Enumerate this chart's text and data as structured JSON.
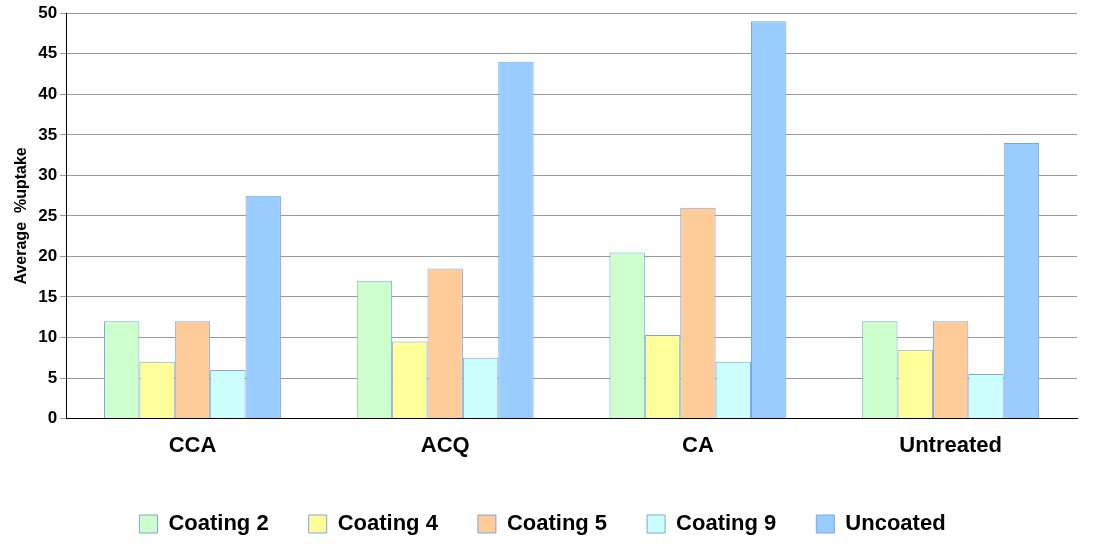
{
  "chart_data": {
    "type": "bar",
    "ylabel": "Average  %uptake",
    "categories": [
      "CCA",
      "ACQ",
      "CA",
      "Untreated"
    ],
    "series": [
      {
        "name": "Coating 2",
        "color": "#ccffcc",
        "values": [
          12,
          17,
          20.5,
          12
        ]
      },
      {
        "name": "Coating 4",
        "color": "#ffff99",
        "values": [
          7,
          9.5,
          10.3,
          8.5
        ]
      },
      {
        "name": "Coating 5",
        "color": "#ffcc99",
        "values": [
          12,
          18.5,
          26,
          12
        ]
      },
      {
        "name": "Coating 9",
        "color": "#ccffff",
        "values": [
          6,
          7.5,
          7,
          5.5
        ]
      },
      {
        "name": "Uncoated",
        "color": "#99ccff",
        "values": [
          27.5,
          44,
          49,
          34
        ]
      }
    ],
    "ylim": [
      0,
      50
    ],
    "yticks": [
      0,
      5,
      10,
      15,
      20,
      25,
      30,
      35,
      40,
      45,
      50
    ],
    "grid": "y",
    "legend": "bottom"
  }
}
